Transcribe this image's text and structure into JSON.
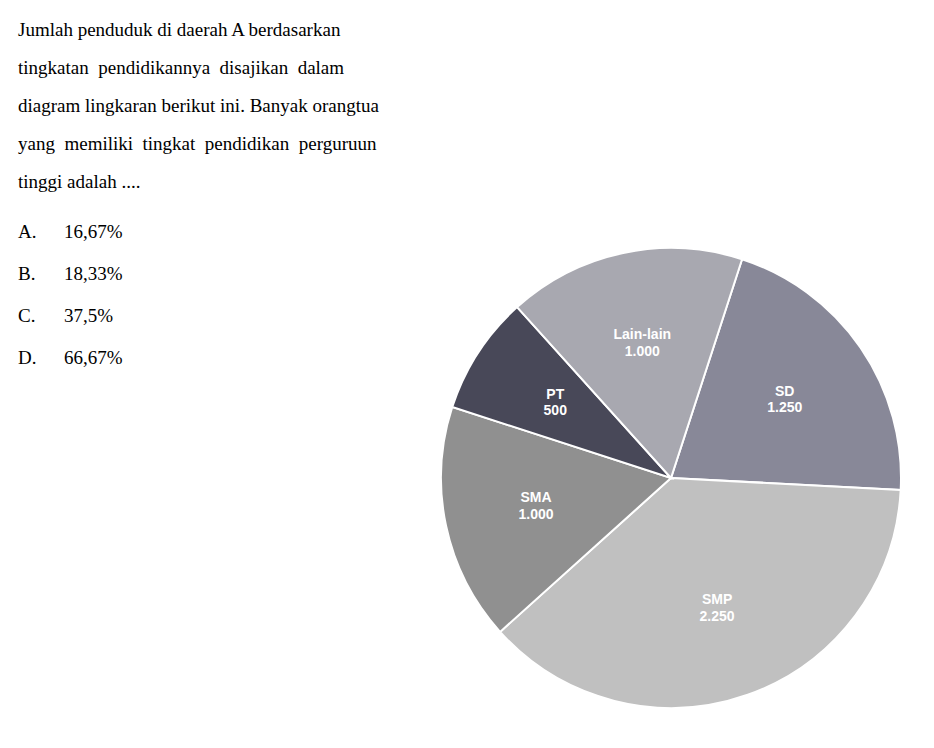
{
  "chart_data": {
    "type": "pie",
    "annotations": [
      "Jumlah penduduk di daerah A berdasarkan",
      "tingkatan  pendidikannya  disajikan  dalam",
      "diagram lingkaran berikut ini. Banyak orangtua",
      "yang  memiliki  tingkat  pendidikan  perguruun",
      "tinggi adalah ....",
      [
        "A.",
        "16,67%"
      ],
      [
        "B.",
        "18,33%"
      ],
      [
        "C.",
        "37,5%"
      ],
      [
        "D.",
        "66,67%"
      ]
    ],
    "categories": [
      "SD",
      "SMP",
      "SMA",
      "PT",
      "Lain-lain"
    ],
    "values": [
      1250,
      2250,
      1000,
      500,
      1000
    ],
    "value_labels": [
      "1.250",
      "2.250",
      "1.000",
      "500",
      "1.000"
    ],
    "colors": [
      "#888898",
      "#c0c0c0",
      "#909090",
      "#484858",
      "#a8a8b0"
    ],
    "data_labels": true
  }
}
